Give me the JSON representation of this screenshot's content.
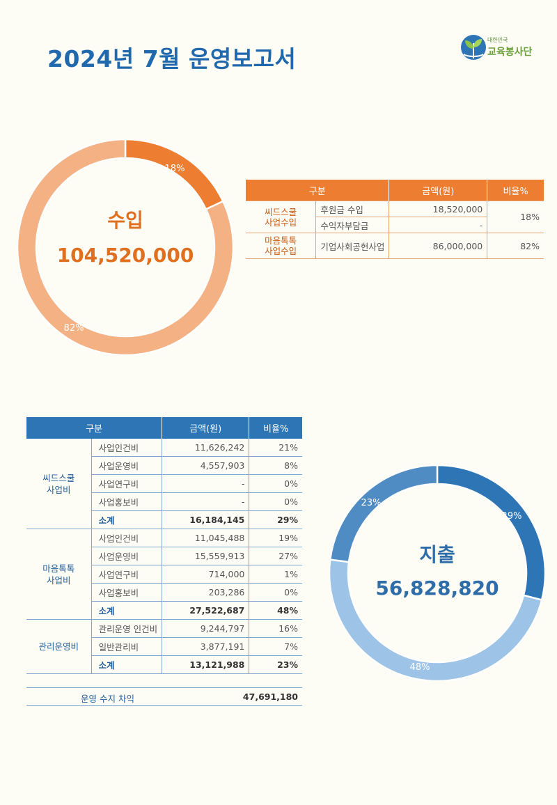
{
  "header": {
    "title": "2024년 7월 운영보고서",
    "logo_small": "대한민국",
    "logo_main": "교육봉사단"
  },
  "income": {
    "label": "수입",
    "total": "104,520,000",
    "slices": [
      {
        "label": "18%",
        "value": 18,
        "color": "#ec7d31"
      },
      {
        "label": "82%",
        "value": 82,
        "color": "#f4b183"
      }
    ],
    "table": {
      "headers": [
        "구분",
        "금액(원)",
        "비율%"
      ],
      "groups": [
        {
          "category": [
            "씨드스쿨",
            "사업수입"
          ],
          "rows": [
            {
              "item": "후원금 수입",
              "amount": "18,520,000"
            },
            {
              "item": "수익자부담금",
              "amount": "-"
            }
          ],
          "ratio": "18%"
        },
        {
          "category": [
            "마음톡톡",
            "사업수입"
          ],
          "rows": [
            {
              "item": "기업사회공헌사업",
              "amount": "86,000,000"
            }
          ],
          "ratio": "82%"
        }
      ]
    }
  },
  "expense": {
    "label": "지출",
    "total": "56,828,820",
    "slices": [
      {
        "label": "29%",
        "value": 29,
        "color": "#2e75b6"
      },
      {
        "label": "48%",
        "value": 48,
        "color": "#9dc3e6"
      },
      {
        "label": "23%",
        "value": 23,
        "color": "#4f8cc4"
      }
    ],
    "table": {
      "headers": [
        "구분",
        "금액(원)",
        "비율%"
      ],
      "groups": [
        {
          "category": [
            "씨드스쿨",
            "사업비"
          ],
          "rows": [
            {
              "item": "사업인건비",
              "amount": "11,626,242",
              "ratio": "21%"
            },
            {
              "item": "사업운영비",
              "amount": "4,557,903",
              "ratio": "8%"
            },
            {
              "item": "사업연구비",
              "amount": "-",
              "ratio": "0%"
            },
            {
              "item": "사업홍보비",
              "amount": "-",
              "ratio": "0%"
            },
            {
              "item": "소계",
              "amount": "16,184,145",
              "ratio": "29%",
              "subtotal": true
            }
          ]
        },
        {
          "category": [
            "마음톡톡",
            "사업비"
          ],
          "rows": [
            {
              "item": "사업인건비",
              "amount": "11,045,488",
              "ratio": "19%"
            },
            {
              "item": "사업운영비",
              "amount": "15,559,913",
              "ratio": "27%"
            },
            {
              "item": "사업연구비",
              "amount": "714,000",
              "ratio": "1%"
            },
            {
              "item": "사업홍보비",
              "amount": "203,286",
              "ratio": "0%"
            },
            {
              "item": "소계",
              "amount": "27,522,687",
              "ratio": "48%",
              "subtotal": true
            }
          ]
        },
        {
          "category": [
            "관리운영비"
          ],
          "rows": [
            {
              "item": "관리운영 인건비",
              "amount": "9,244,797",
              "ratio": "16%"
            },
            {
              "item": "일반관리비",
              "amount": "3,877,191",
              "ratio": "7%"
            },
            {
              "item": "소계",
              "amount": "13,121,988",
              "ratio": "23%",
              "subtotal": true
            }
          ]
        }
      ]
    },
    "net_label": "운영 수지 차익",
    "net_value": "47,691,180"
  }
}
